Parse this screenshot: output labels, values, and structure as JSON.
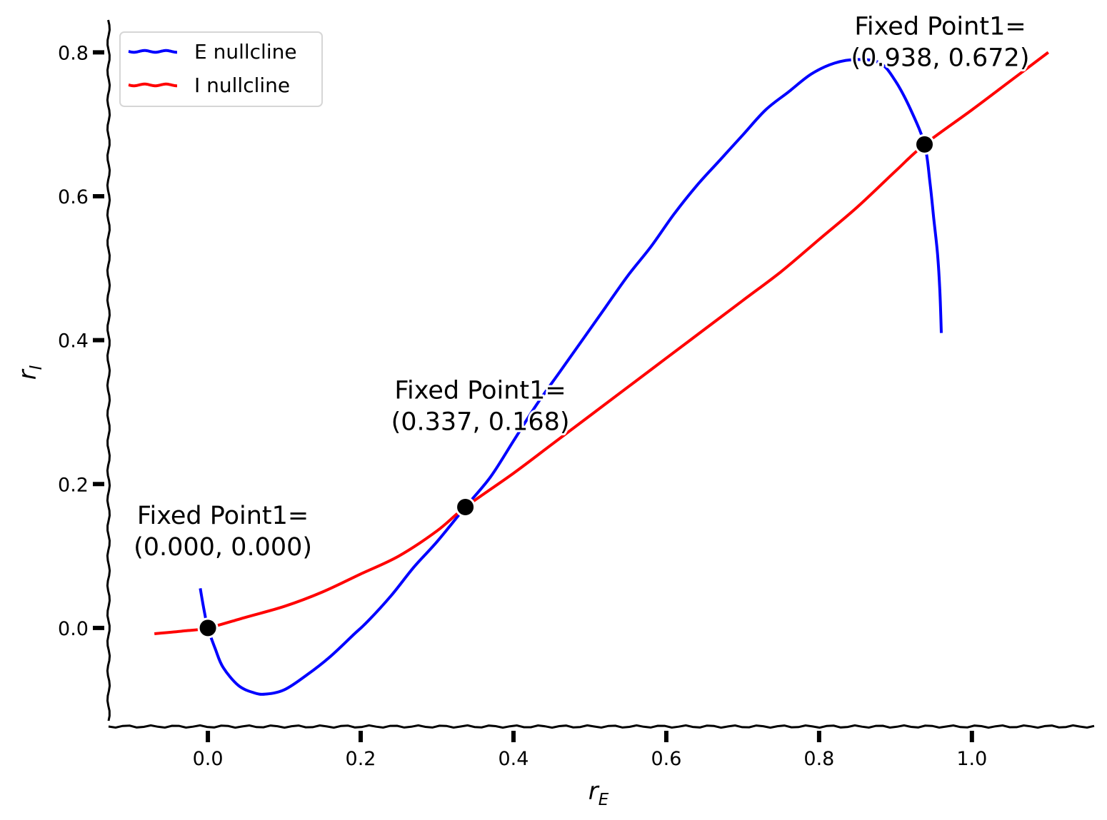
{
  "chart_data": {
    "type": "line",
    "title": "",
    "xlabel": {
      "base": "r",
      "sub": "E"
    },
    "ylabel": {
      "base": "r",
      "sub": "I"
    },
    "xlim": [
      -0.13,
      1.16
    ],
    "ylim": [
      -0.135,
      0.845
    ],
    "xticks": [
      0.0,
      0.2,
      0.4,
      0.6,
      0.8,
      1.0
    ],
    "xtick_labels": [
      "0.0",
      "0.2",
      "0.4",
      "0.6",
      "0.8",
      "1.0"
    ],
    "yticks": [
      0.0,
      0.2,
      0.4,
      0.6,
      0.8
    ],
    "ytick_labels": [
      "0.0",
      "0.2",
      "0.4",
      "0.6",
      "0.8"
    ],
    "grid": false,
    "legend_position": "top-left",
    "series": [
      {
        "name": "E nullcline",
        "color": "#0000ff",
        "x": [
          -0.01,
          -0.005,
          0.0,
          0.01,
          0.02,
          0.04,
          0.06,
          0.075,
          0.1,
          0.13,
          0.16,
          0.19,
          0.21,
          0.24,
          0.27,
          0.3,
          0.337,
          0.37,
          0.4,
          0.43,
          0.46,
          0.49,
          0.52,
          0.55,
          0.58,
          0.61,
          0.64,
          0.67,
          0.7,
          0.73,
          0.76,
          0.79,
          0.82,
          0.85,
          0.88,
          0.9,
          0.92,
          0.938,
          0.945,
          0.95,
          0.955,
          0.958,
          0.96
        ],
        "y": [
          0.055,
          0.025,
          0.0,
          -0.03,
          -0.055,
          -0.08,
          -0.09,
          -0.092,
          -0.086,
          -0.065,
          -0.04,
          -0.01,
          0.01,
          0.045,
          0.085,
          0.12,
          0.168,
          0.21,
          0.26,
          0.31,
          0.355,
          0.4,
          0.445,
          0.49,
          0.53,
          0.575,
          0.615,
          0.65,
          0.685,
          0.72,
          0.745,
          0.77,
          0.785,
          0.79,
          0.785,
          0.76,
          0.72,
          0.672,
          0.62,
          0.57,
          0.52,
          0.47,
          0.41
        ]
      },
      {
        "name": "I nullcline",
        "color": "#ff0000",
        "x": [
          -0.07,
          -0.03,
          0.0,
          0.05,
          0.1,
          0.15,
          0.2,
          0.25,
          0.3,
          0.337,
          0.4,
          0.45,
          0.5,
          0.55,
          0.6,
          0.65,
          0.7,
          0.75,
          0.8,
          0.85,
          0.9,
          0.938,
          1.0,
          1.05,
          1.1
        ],
        "y": [
          -0.008,
          -0.004,
          0.0,
          0.015,
          0.03,
          0.05,
          0.075,
          0.1,
          0.135,
          0.168,
          0.215,
          0.255,
          0.295,
          0.335,
          0.375,
          0.415,
          0.455,
          0.495,
          0.54,
          0.585,
          0.635,
          0.672,
          0.72,
          0.76,
          0.8
        ]
      }
    ],
    "fixed_points": [
      {
        "x": 0.0,
        "y": 0.0,
        "label_line1": "Fixed Point1=",
        "label_line2": "(0.000, 0.000)"
      },
      {
        "x": 0.337,
        "y": 0.168,
        "label_line1": "Fixed Point1=",
        "label_line2": "(0.337, 0.168)"
      },
      {
        "x": 0.938,
        "y": 0.672,
        "label_line1": "Fixed Point1=",
        "label_line2": "(0.938, 0.672)"
      }
    ]
  }
}
